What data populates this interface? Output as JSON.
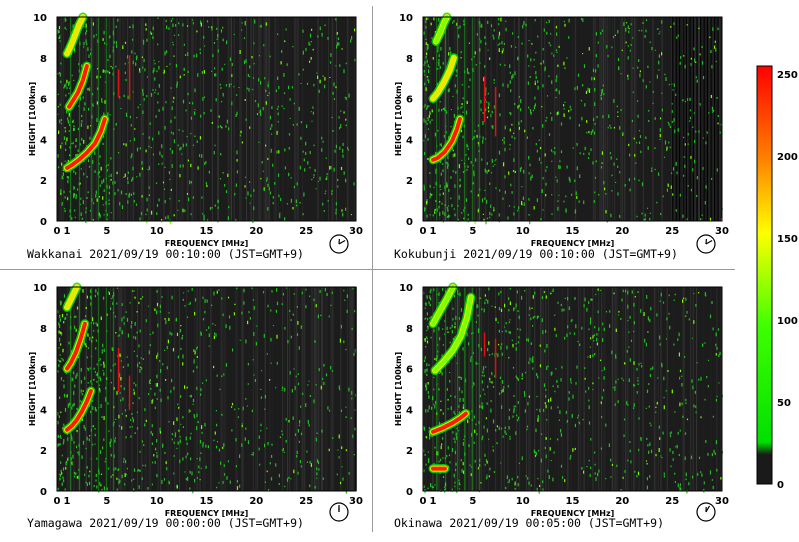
{
  "chart_data": [
    {
      "type": "heatmap",
      "station": "Wakkanai",
      "caption": "Wakkanai 2021/09/19 00:10:00 (JST=GMT+9)",
      "xlabel": "FREQUENCY [MHz]",
      "ylabel": "HEIGHT [100km]",
      "xlim": [
        0,
        30
      ],
      "ylim": [
        0,
        10
      ],
      "xticks": [
        "0",
        "1",
        "5",
        "10",
        "15",
        "20",
        "25",
        "30"
      ],
      "yticks": [
        "0",
        "2",
        "4",
        "6",
        "8",
        "10"
      ],
      "clock_time": "00:10",
      "traces": [
        {
          "name": "F-layer",
          "points": [
            [
              1.0,
              2.6
            ],
            [
              1.5,
              2.75
            ],
            [
              2.2,
              3.0
            ],
            [
              3.0,
              3.35
            ],
            [
              3.8,
              3.8
            ],
            [
              4.4,
              4.4
            ],
            [
              4.8,
              5.0
            ]
          ],
          "intensity": 240
        },
        {
          "name": "2F",
          "points": [
            [
              1.2,
              5.6
            ],
            [
              1.6,
              5.9
            ],
            [
              2.1,
              6.3
            ],
            [
              2.6,
              6.9
            ],
            [
              3.0,
              7.6
            ]
          ],
          "intensity": 230
        },
        {
          "name": "3F",
          "points": [
            [
              1.0,
              8.2
            ],
            [
              1.4,
              8.6
            ],
            [
              1.8,
              9.1
            ],
            [
              2.2,
              9.6
            ],
            [
              2.6,
              10.0
            ]
          ],
          "intensity": 160
        }
      ]
    },
    {
      "type": "heatmap",
      "station": "Kokubunji",
      "caption": "Kokubunji 2021/09/19 00:10:00 (JST=GMT+9)",
      "xlabel": "FREQUENCY [MHz]",
      "ylabel": "HEIGHT [100km]",
      "xlim": [
        0,
        30
      ],
      "ylim": [
        0,
        10
      ],
      "xticks": [
        "0",
        "1",
        "5",
        "10",
        "15",
        "20",
        "25",
        "30"
      ],
      "yticks": [
        "0",
        "2",
        "4",
        "6",
        "8",
        "10"
      ],
      "clock_time": "00:10",
      "traces": [
        {
          "name": "F-layer",
          "points": [
            [
              1.0,
              3.0
            ],
            [
              1.5,
              3.1
            ],
            [
              2.2,
              3.4
            ],
            [
              2.9,
              3.9
            ],
            [
              3.4,
              4.5
            ],
            [
              3.7,
              5.0
            ]
          ],
          "intensity": 245
        },
        {
          "name": "2F",
          "points": [
            [
              1.0,
              6.0
            ],
            [
              1.5,
              6.3
            ],
            [
              2.1,
              6.8
            ],
            [
              2.7,
              7.4
            ],
            [
              3.1,
              8.0
            ]
          ],
          "intensity": 150
        },
        {
          "name": "3F",
          "points": [
            [
              1.3,
              8.8
            ],
            [
              1.7,
              9.2
            ],
            [
              2.1,
              9.7
            ],
            [
              2.4,
              10.0
            ]
          ],
          "intensity": 120
        }
      ]
    },
    {
      "type": "heatmap",
      "station": "Yamagawa",
      "caption": "Yamagawa 2021/09/19 00:00:00 (JST=GMT+9)",
      "xlabel": "FREQUENCY [MHz]",
      "ylabel": "HEIGHT [100km]",
      "xlim": [
        0,
        30
      ],
      "ylim": [
        0,
        10
      ],
      "xticks": [
        "0",
        "1",
        "5",
        "10",
        "15",
        "20",
        "25",
        "30"
      ],
      "yticks": [
        "0",
        "2",
        "4",
        "6",
        "8",
        "10"
      ],
      "clock_time": "00:00",
      "traces": [
        {
          "name": "F-layer",
          "points": [
            [
              1.0,
              3.0
            ],
            [
              1.5,
              3.2
            ],
            [
              2.0,
              3.5
            ],
            [
              2.5,
              3.9
            ],
            [
              3.0,
              4.4
            ],
            [
              3.4,
              4.9
            ]
          ],
          "intensity": 245
        },
        {
          "name": "2F",
          "points": [
            [
              1.0,
              6.0
            ],
            [
              1.4,
              6.3
            ],
            [
              1.9,
              6.8
            ],
            [
              2.4,
              7.5
            ],
            [
              2.8,
              8.2
            ]
          ],
          "intensity": 240
        },
        {
          "name": "3F",
          "points": [
            [
              1.0,
              9.0
            ],
            [
              1.3,
              9.3
            ],
            [
              1.7,
              9.7
            ],
            [
              2.0,
              10.0
            ]
          ],
          "intensity": 150
        }
      ]
    },
    {
      "type": "heatmap",
      "station": "Okinawa",
      "caption": "Okinawa 2021/09/19 00:05:00 (JST=GMT+9)",
      "xlabel": "FREQUENCY [MHz]",
      "ylabel": "HEIGHT [100km]",
      "xlim": [
        0,
        30
      ],
      "ylim": [
        0,
        10
      ],
      "xticks": [
        "0",
        "1",
        "5",
        "10",
        "15",
        "20",
        "25",
        "30"
      ],
      "yticks": [
        "0",
        "2",
        "4",
        "6",
        "8",
        "10"
      ],
      "clock_time": "00:05",
      "traces": [
        {
          "name": "Es-layer",
          "points": [
            [
              1.0,
              1.1
            ],
            [
              1.6,
              1.1
            ],
            [
              2.2,
              1.1
            ]
          ],
          "intensity": 240
        },
        {
          "name": "F-layer",
          "points": [
            [
              1.0,
              2.9
            ],
            [
              2.0,
              3.1
            ],
            [
              3.0,
              3.35
            ],
            [
              3.8,
              3.6
            ],
            [
              4.3,
              3.8
            ]
          ],
          "intensity": 230
        },
        {
          "name": "2F",
          "points": [
            [
              1.2,
              5.9
            ],
            [
              2.0,
              6.3
            ],
            [
              3.0,
              6.9
            ],
            [
              3.8,
              7.6
            ],
            [
              4.4,
              8.5
            ],
            [
              4.8,
              9.5
            ]
          ],
          "intensity": 110
        },
        {
          "name": "3F",
          "points": [
            [
              1.0,
              8.2
            ],
            [
              1.8,
              8.9
            ],
            [
              2.6,
              9.6
            ],
            [
              3.0,
              10.0
            ]
          ],
          "intensity": 90
        }
      ]
    }
  ],
  "colorbar": {
    "min": 0,
    "max": 255,
    "ticks": [
      "250",
      "200",
      "150",
      "100",
      "50",
      "0"
    ],
    "colors": [
      "#ff0000",
      "#ff7f00",
      "#ffff00",
      "#00ff00",
      "#00dd00",
      "#1a1a1a"
    ]
  }
}
